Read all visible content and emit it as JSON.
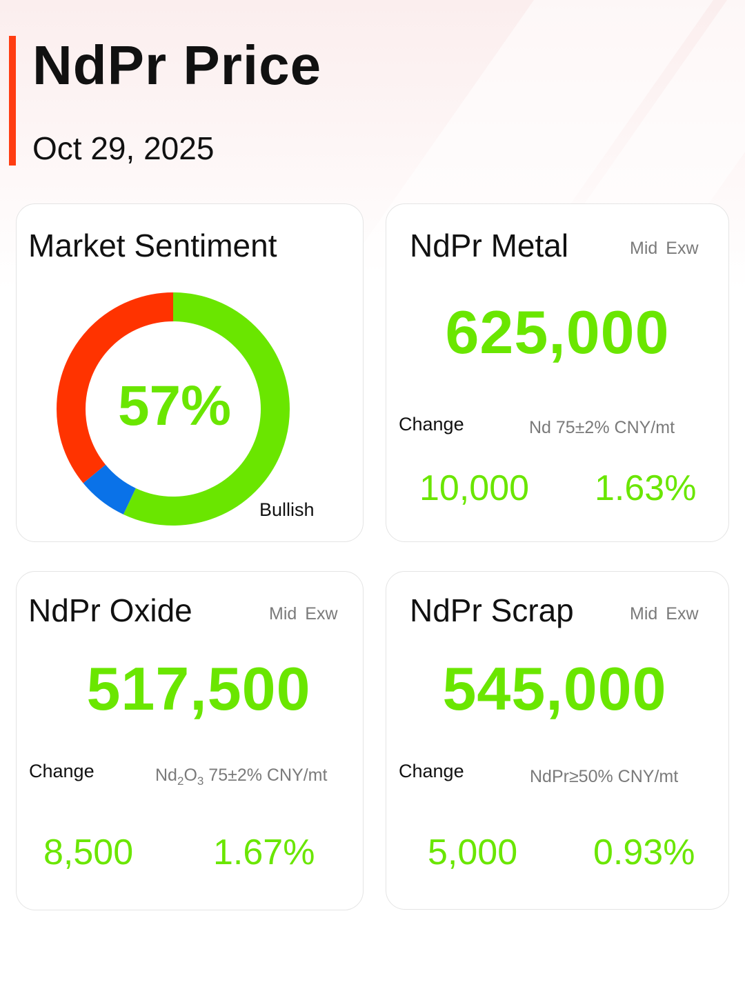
{
  "header": {
    "title": "NdPr Price",
    "date": "Oct 29, 2025"
  },
  "colors": {
    "accent": "#ff3d12",
    "green": "#6ae600",
    "bearish": "#ff3300",
    "neutral": "#0a72e8"
  },
  "sentiment": {
    "title": "Market Sentiment",
    "percent_label": "57%",
    "label": "Bullish",
    "shares": {
      "bullish": 57,
      "neutral": 7,
      "bearish": 36
    }
  },
  "metal": {
    "title": "NdPr Metal",
    "mid": "Mid",
    "exw": "Exw",
    "price": "625,000",
    "change_label": "Change",
    "spec": "Nd 75±2% CNY/mt",
    "change_abs": "10,000",
    "change_pct": "1.63%"
  },
  "oxide": {
    "title": "NdPr Oxide",
    "mid": "Mid",
    "exw": "Exw",
    "price": "517,500",
    "change_label": "Change",
    "spec_base1": "Nd",
    "spec_sub1": "2",
    "spec_base2": "O",
    "spec_sub2": "3",
    "spec_rest": " 75±2% CNY/mt",
    "change_abs": "8,500",
    "change_pct": "1.67%"
  },
  "scrap": {
    "title": "NdPr Scrap",
    "mid": "Mid",
    "exw": "Exw",
    "price": "545,000",
    "change_label": "Change",
    "spec": "NdPr≥50% CNY/mt",
    "change_abs": "5,000",
    "change_pct": "0.93%"
  }
}
